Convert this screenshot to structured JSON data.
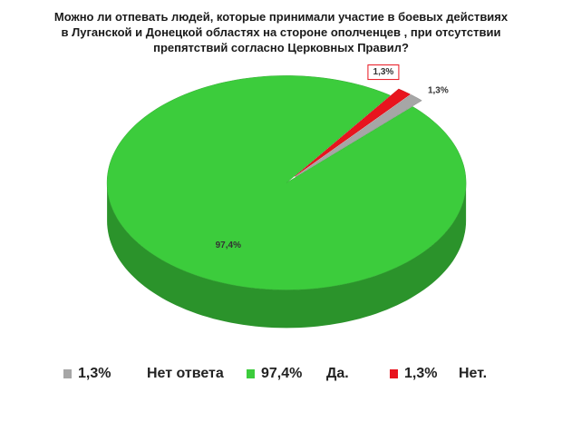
{
  "chart_data": {
    "type": "pie",
    "title": "Можно ли отпевать людей, которые принимали участие в боевых действиях в Луганской и Донецкой областях на стороне ополченцев , при отсутствии препятствий согласно Церковных Правил?",
    "categories": [
      "Нет ответа",
      "Да.",
      "Нет."
    ],
    "values": [
      1.3,
      97.4,
      1.3
    ],
    "value_labels": [
      "1,3%",
      "97,4%",
      "1,3%"
    ],
    "colors": [
      "#a6a6a6",
      "#3ccc3c",
      "#e8141e"
    ],
    "legend": "bottom"
  }
}
